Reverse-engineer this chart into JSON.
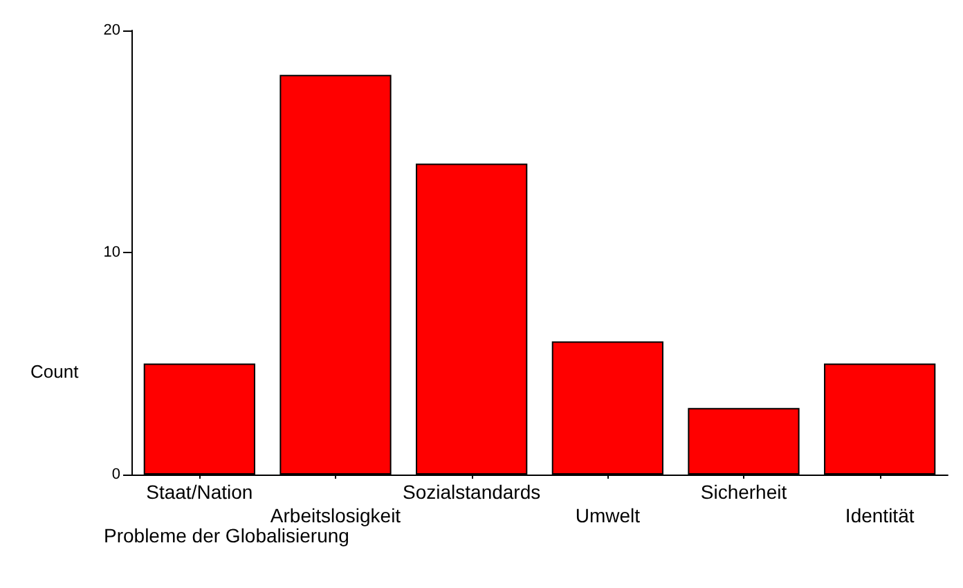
{
  "chart_data": {
    "type": "bar",
    "categories": [
      "Staat/Nation",
      "Arbeitslosigkeit",
      "Sozialstandards",
      "Umwelt",
      "Sicherheit",
      "Identität"
    ],
    "values": [
      5,
      18,
      14,
      6,
      3,
      5
    ],
    "color": "#ff0000",
    "ylim": [
      0,
      20
    ],
    "yticks": [
      0,
      10,
      20
    ],
    "ylabel": "Count",
    "xlabel": "Probleme der Globalisierung"
  }
}
